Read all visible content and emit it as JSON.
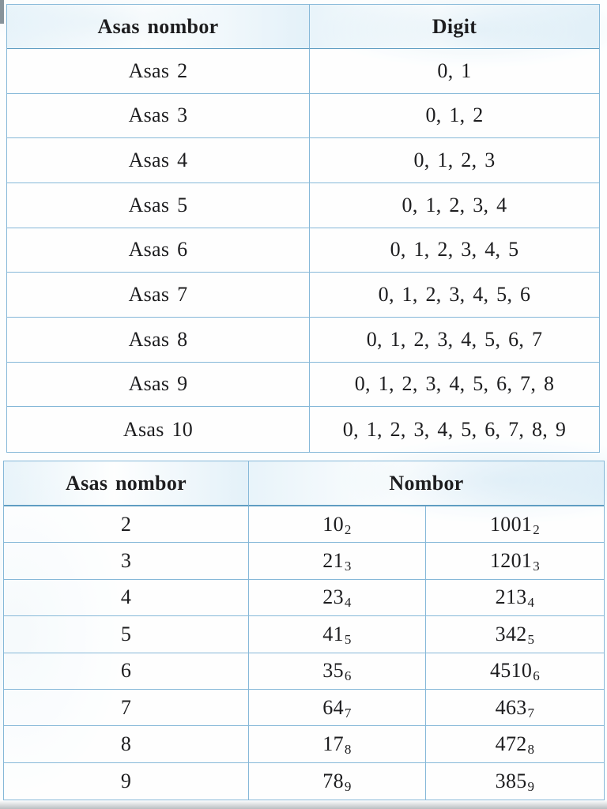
{
  "colors": {
    "border": "#86b8d8",
    "border_dark": "#5f9dc2",
    "text": "#1d1d1f",
    "header_tint": "#e7f2f9",
    "page_bg": "#fdfefe"
  },
  "table1": {
    "header": {
      "base": "Asas nombor",
      "digits": "Digit"
    },
    "rows": [
      {
        "base": "Asas 2",
        "digits": "0, 1"
      },
      {
        "base": "Asas 3",
        "digits": "0, 1, 2"
      },
      {
        "base": "Asas 4",
        "digits": "0, 1, 2, 3"
      },
      {
        "base": "Asas 5",
        "digits": "0, 1, 2, 3, 4"
      },
      {
        "base": "Asas 6",
        "digits": "0, 1, 2, 3, 4, 5"
      },
      {
        "base": "Asas 7",
        "digits": "0, 1, 2, 3, 4, 5, 6"
      },
      {
        "base": "Asas 8",
        "digits": "0, 1, 2, 3, 4, 5, 6, 7"
      },
      {
        "base": "Asas 9",
        "digits": "0, 1, 2, 3, 4, 5, 6, 7, 8"
      },
      {
        "base": "Asas 10",
        "digits": "0, 1, 2, 3, 4, 5, 6, 7, 8, 9"
      }
    ]
  },
  "table2": {
    "header": {
      "base": "Asas nombor",
      "numbers": "Nombor"
    },
    "rows": [
      {
        "base": "2",
        "num1": "10",
        "sub1": "2",
        "num2": "1001",
        "sub2": "2"
      },
      {
        "base": "3",
        "num1": "21",
        "sub1": "3",
        "num2": "1201",
        "sub2": "3"
      },
      {
        "base": "4",
        "num1": "23",
        "sub1": "4",
        "num2": "213",
        "sub2": "4"
      },
      {
        "base": "5",
        "num1": "41",
        "sub1": "5",
        "num2": "342",
        "sub2": "5"
      },
      {
        "base": "6",
        "num1": "35",
        "sub1": "6",
        "num2": "4510",
        "sub2": "6"
      },
      {
        "base": "7",
        "num1": "64",
        "sub1": "7",
        "num2": "463",
        "sub2": "7"
      },
      {
        "base": "8",
        "num1": "17",
        "sub1": "8",
        "num2": "472",
        "sub2": "8"
      },
      {
        "base": "9",
        "num1": "78",
        "sub1": "9",
        "num2": "385",
        "sub2": "9"
      }
    ]
  }
}
